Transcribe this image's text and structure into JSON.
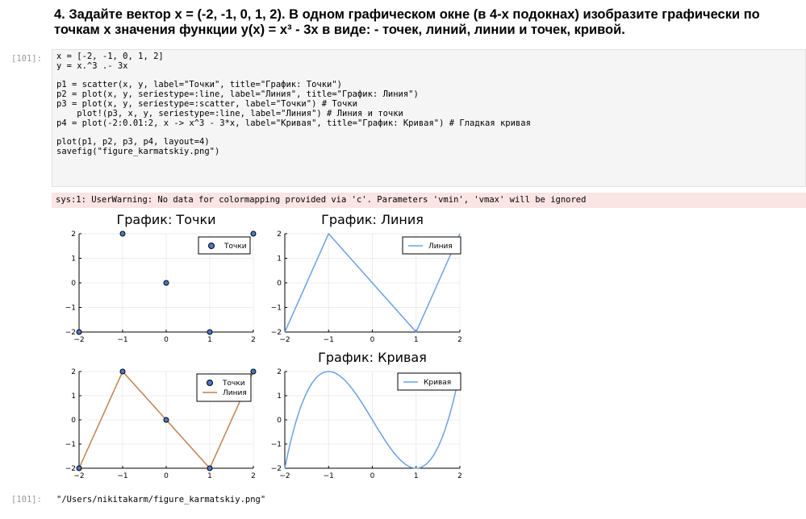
{
  "heading_line1": "4. Задайте вектор x = (-2, -1, 0, 1, 2). В одном графическом окне (в 4-х подокнах) изобразите графически по",
  "heading_line2": "точкам x значения функции y(x) = x³ - 3x в виде: - точек, линий, линии и точек, кривой.",
  "cell_prompt": "[101]:",
  "output_prompt": "[101]:",
  "code_lines": [
    "x = [-2, -1, 0, 1, 2]",
    "y = x.^3 .- 3x",
    "",
    "p1 = scatter(x, y, label=\"Точки\", title=\"График: Точки\")",
    "p2 = plot(x, y, seriestype=:line, label=\"Линия\", title=\"График: Линия\")",
    "p3 = plot(x, y, seriestype=:scatter, label=\"Точки\") # Точки",
    "    plot!(p3, x, y, seriestype=:line, label=\"Линия\") # Линия и точки",
    "p4 = plot(-2:0.01:2, x -> x^3 - 3*x, label=\"Кривая\", title=\"График: Кривая\") # Гладкая кривая",
    "",
    "plot(p1, p2, p3, p4, layout=4)",
    "savefig(\"figure_karmatskiy.png\")"
  ],
  "stderr_text": "sys:1: UserWarning: No data for colormapping provided via 'c'. Parameters 'vmin', 'vmax' will be ignored",
  "result_text": "\"/Users/nikitakarm/figure_karmatskiy.png\"",
  "colors": {
    "scatter_fill": "#4a78c8",
    "line_blue": "#6aa0e8",
    "line_orange": "#c2804f"
  },
  "chart_data": [
    {
      "type": "scatter",
      "title": "График: Точки",
      "x": [
        -2,
        -1,
        0,
        1,
        2
      ],
      "y": [
        -2,
        2,
        0,
        -2,
        2
      ],
      "legend": [
        "Точки"
      ],
      "xticks": [
        "−2",
        "−1",
        "0",
        "1",
        "2"
      ],
      "yticks": [
        "−2",
        "−1",
        "0",
        "1",
        "2"
      ],
      "xlim": [
        -2,
        2
      ],
      "ylim": [
        -2,
        2
      ]
    },
    {
      "type": "line",
      "title": "График: Линия",
      "x": [
        -2,
        -1,
        0,
        1,
        2
      ],
      "y": [
        -2,
        2,
        0,
        -2,
        2
      ],
      "legend": [
        "Линия"
      ],
      "xticks": [
        "−2",
        "−1",
        "0",
        "1",
        "2"
      ],
      "yticks": [
        "−2",
        "−1",
        "0",
        "1",
        "2"
      ],
      "xlim": [
        -2,
        2
      ],
      "ylim": [
        -2,
        2
      ]
    },
    {
      "type": "line",
      "title": "",
      "x": [
        -2,
        -1,
        0,
        1,
        2
      ],
      "series": [
        {
          "name": "Точки",
          "kind": "scatter",
          "y": [
            -2,
            2,
            0,
            -2,
            2
          ]
        },
        {
          "name": "Линия",
          "kind": "line",
          "y": [
            -2,
            2,
            0,
            -2,
            2
          ]
        }
      ],
      "legend": [
        "Точки",
        "Линия"
      ],
      "xticks": [
        "−2",
        "−1",
        "0",
        "1",
        "2"
      ],
      "yticks": [
        "−2",
        "−1",
        "0",
        "1",
        "2"
      ],
      "xlim": [
        -2,
        2
      ],
      "ylim": [
        -2,
        2
      ]
    },
    {
      "type": "line",
      "title": "График: Кривая",
      "function": "x^3 - 3x",
      "x_range": [
        -2,
        2
      ],
      "x_step": 0.01,
      "legend": [
        "Кривая"
      ],
      "xticks": [
        "−2",
        "−1",
        "0",
        "1",
        "2"
      ],
      "yticks": [
        "−2",
        "−1",
        "0",
        "1",
        "2"
      ],
      "xlim": [
        -2,
        2
      ],
      "ylim": [
        -2,
        2
      ]
    }
  ]
}
